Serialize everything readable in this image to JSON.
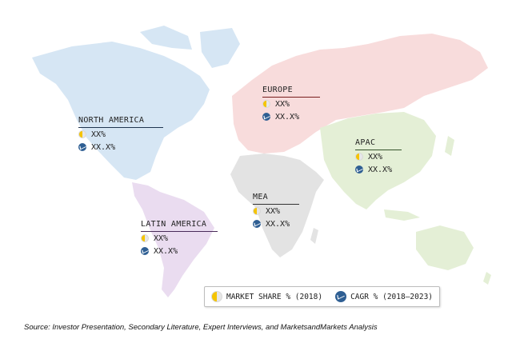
{
  "regions": {
    "north_america": {
      "name": "NORTH AMERICA",
      "market_share": "XX%",
      "cagr": "XX.X%",
      "color": "#d6e6f4",
      "underline": "#1f3550"
    },
    "europe": {
      "name": "EUROPE",
      "market_share": "XX%",
      "cagr": "XX.X%",
      "color": "#f8dcdc",
      "underline": "#7a1d1d"
    },
    "apac": {
      "name": "APAC",
      "market_share": "XX%",
      "cagr": "XX.X%",
      "color": "#e4efd6",
      "underline": "#35522a"
    },
    "mea": {
      "name": "MEA",
      "market_share": "XX%",
      "cagr": "XX.X%",
      "color": "#e3e3e3",
      "underline": "#333333"
    },
    "latin_america": {
      "name": "LATIN AMERICA",
      "market_share": "XX%",
      "cagr": "XX.X%",
      "color": "#eadcf0",
      "underline": "#4a2b5a"
    }
  },
  "legend": {
    "market_share_label": "MARKET SHARE % (2018)",
    "cagr_label": "CAGR % (2018–2023)",
    "market_share_icon": "half-circle-icon",
    "cagr_icon": "growth-icon"
  },
  "source": "Source: Investor Presentation, Secondary Literature, Expert Interviews, and MarketsandMarkets Analysis"
}
